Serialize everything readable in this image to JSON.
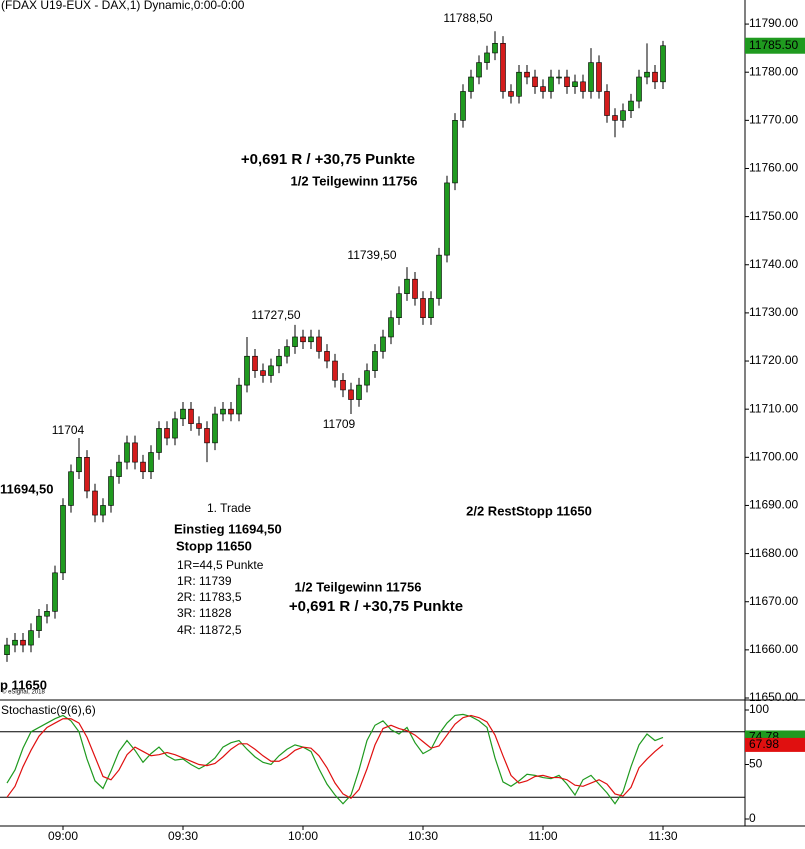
{
  "chart_data": [
    {
      "type": "candlestick",
      "title": "(FDAX U19-EUX - DAX,1) Dynamic,0:00-0:00",
      "categories": [
        null,
        null,
        null,
        null,
        null,
        null,
        null,
        "09:00",
        null,
        null,
        null,
        null,
        null,
        null,
        null,
        null,
        null,
        null,
        null,
        null,
        null,
        null,
        "09:30",
        null,
        null,
        null,
        null,
        null,
        null,
        null,
        null,
        null,
        null,
        null,
        null,
        null,
        null,
        "10:00",
        null,
        null,
        null,
        null,
        null,
        null,
        null,
        null,
        null,
        null,
        null,
        null,
        null,
        null,
        "10:30",
        null,
        null,
        null,
        null,
        null,
        null,
        null,
        null,
        null,
        null,
        null,
        null,
        null,
        null,
        "11:00",
        null,
        null,
        null,
        null,
        null,
        null,
        null,
        null,
        null,
        null,
        null,
        null,
        null,
        null,
        "11:30"
      ],
      "open": [
        11659,
        11661,
        11662,
        11661,
        11664,
        11667,
        11668,
        11676,
        11690,
        11697,
        11700,
        11693,
        11688,
        11690,
        11696,
        11699,
        11703,
        11699,
        11697,
        11701,
        11706,
        11704,
        11708,
        11710,
        11707,
        11706,
        11703,
        11709,
        11710,
        11709,
        11715,
        11721,
        11718,
        11717,
        11719,
        11721,
        11723,
        11725,
        11724,
        11725,
        11722,
        11720,
        11716,
        11714,
        11712,
        11715,
        11718,
        11722,
        11725,
        11729,
        11734,
        11737,
        11733,
        11729,
        11733,
        11742,
        11757,
        11770,
        11776,
        11779,
        11782,
        11784,
        11786,
        11776,
        11775,
        11780,
        11779,
        11777,
        11776,
        11779,
        11779,
        11777,
        11778,
        11776,
        11782,
        11776,
        11771,
        11770,
        11772,
        11774,
        11779,
        11780,
        11778
      ],
      "high": [
        11662.5,
        11663.5,
        11663.5,
        11665.5,
        11668.5,
        11669.5,
        11677.5,
        11691.5,
        11698.5,
        11704,
        11701.5,
        11694.5,
        11691.5,
        11697.5,
        11700.5,
        11704.5,
        11704.5,
        11700.5,
        11702.5,
        11707.5,
        11707.5,
        11709.5,
        11711.5,
        11711.5,
        11708.5,
        11707.5,
        11710.5,
        11711.5,
        11711.5,
        11716.5,
        11725,
        11722.5,
        11719.5,
        11720.5,
        11722.5,
        11724.5,
        11727.5,
        11726.5,
        11726.5,
        11726.5,
        11723.5,
        11721.5,
        11717.5,
        11715.5,
        11716.5,
        11719.5,
        11723.5,
        11726.5,
        11730.5,
        11735.5,
        11739.5,
        11738.5,
        11734.5,
        11734.5,
        11743.5,
        11758.5,
        11771.5,
        11777.5,
        11780.5,
        11783.5,
        11785.5,
        11788.5,
        11787.5,
        11777.5,
        11781.5,
        11781.5,
        11780.5,
        11778.5,
        11780.5,
        11780.5,
        11780.5,
        11779.5,
        11779.5,
        11785,
        11783.5,
        11777.5,
        11772.5,
        11773.5,
        11775.5,
        11780.5,
        11786,
        11781.5,
        11786.5
      ],
      "low": [
        11657.5,
        11659.5,
        11659.5,
        11659.5,
        11662.5,
        11665.5,
        11666.5,
        11674.5,
        11688.5,
        11695.5,
        11691.5,
        11686.5,
        11686.5,
        11688.5,
        11694.5,
        11697.5,
        11697.5,
        11695.5,
        11695.5,
        11699.5,
        11702.5,
        11702.5,
        11706.5,
        11705.5,
        11704.5,
        11699,
        11701.5,
        11707.5,
        11707.5,
        11707.5,
        11713.5,
        11716.5,
        11715.5,
        11715.5,
        11717.5,
        11719.5,
        11721.5,
        11722.5,
        11722.5,
        11720.5,
        11718.5,
        11714.5,
        11712.5,
        11709,
        11710.5,
        11713.5,
        11716.5,
        11720.5,
        11723.5,
        11727.5,
        11732.5,
        11731.5,
        11727.5,
        11727.5,
        11731.5,
        11740.5,
        11755.5,
        11768.5,
        11774.5,
        11777.5,
        11780.5,
        11782.5,
        11774.5,
        11773.5,
        11773.5,
        11777.5,
        11775.5,
        11774.5,
        11774.5,
        11777.5,
        11775.5,
        11775.5,
        11774.5,
        11774.5,
        11774.5,
        11769.5,
        11766.5,
        11768.5,
        11770.5,
        11772.5,
        11777.5,
        11776.5,
        11776.5
      ],
      "close": [
        11661,
        11662,
        11661,
        11664,
        11667,
        11668,
        11676,
        11690,
        11697,
        11700,
        11693,
        11688,
        11690,
        11696,
        11699,
        11703,
        11699,
        11697,
        11701,
        11706,
        11704,
        11708,
        11710,
        11707,
        11706,
        11703,
        11709,
        11710,
        11709,
        11715,
        11721,
        11718,
        11717,
        11719,
        11721,
        11723,
        11725,
        11724,
        11725,
        11722,
        11720,
        11716,
        11714,
        11712,
        11715,
        11718,
        11722,
        11725,
        11729,
        11734,
        11737,
        11733,
        11729,
        11733,
        11742,
        11757,
        11770,
        11776,
        11779,
        11782,
        11784,
        11786,
        11776,
        11775,
        11780,
        11779,
        11777,
        11776,
        11779,
        11779,
        11777,
        11778,
        11776,
        11782,
        11776,
        11771,
        11770,
        11772,
        11774,
        11779,
        11780,
        11778,
        11785.5
      ],
      "up_color": "#1f9a1f",
      "down_color": "#d41c1c",
      "ylim": [
        11650,
        11795
      ],
      "yticks": [
        {
          "value": 11650,
          "label": "11650.00"
        },
        {
          "value": 11660,
          "label": "11660.00"
        },
        {
          "value": 11670,
          "label": "11670.00"
        },
        {
          "value": 11680,
          "label": "11680.00"
        },
        {
          "value": 11690,
          "label": "11690.00"
        },
        {
          "value": 11700,
          "label": "11700.00"
        },
        {
          "value": 11710,
          "label": "11710.00"
        },
        {
          "value": 11720,
          "label": "11720.00"
        },
        {
          "value": 11730,
          "label": "11730.00"
        },
        {
          "value": 11740,
          "label": "11740.00"
        },
        {
          "value": 11750,
          "label": "11750.00"
        },
        {
          "value": 11760,
          "label": "11760.00"
        },
        {
          "value": 11770,
          "label": "11770.00"
        },
        {
          "value": 11780,
          "label": "11780.00"
        },
        {
          "value": 11790,
          "label": "11790.00"
        }
      ],
      "last_price": {
        "value": 11785.5,
        "label": "11785.50"
      }
    },
    {
      "type": "line",
      "title": "Stochastic(9(6),6)",
      "title_color": "#1f8a1f",
      "series": [
        {
          "color": "#1f9a1f",
          "values": [
            33,
            45,
            65,
            80,
            84,
            88,
            92,
            95,
            90,
            80,
            55,
            35,
            28,
            44,
            62,
            72,
            63,
            52,
            60,
            66,
            58,
            54,
            55,
            50,
            46,
            50,
            56,
            66,
            70,
            72,
            64,
            57,
            52,
            50,
            58,
            64,
            68,
            66,
            62,
            46,
            32,
            22,
            14,
            22,
            45,
            72,
            86,
            90,
            82,
            78,
            84,
            70,
            60,
            64,
            78,
            88,
            95,
            96,
            94,
            90,
            84,
            56,
            34,
            30,
            35,
            41,
            40,
            38,
            37,
            40,
            32,
            22,
            36,
            40,
            32,
            24,
            14,
            25,
            48,
            68,
            78,
            72,
            74.78
          ]
        },
        {
          "color": "#e01010",
          "values": [
            20,
            30,
            48,
            63,
            76,
            84,
            88,
            92,
            92,
            88,
            75,
            57,
            39,
            36,
            45,
            59,
            66,
            62,
            58,
            59,
            61,
            59,
            56,
            53,
            50,
            49,
            51,
            57,
            64,
            69,
            69,
            64,
            58,
            53,
            53,
            57,
            63,
            66,
            65,
            58,
            47,
            33,
            23,
            19,
            27,
            46,
            68,
            83,
            86,
            83,
            81,
            77,
            71,
            65,
            67,
            77,
            87,
            93,
            95,
            93,
            89,
            77,
            58,
            40,
            33,
            35,
            39,
            40,
            38,
            38,
            36,
            31,
            30,
            33,
            36,
            32,
            23,
            21,
            29,
            47,
            55,
            62,
            67.98
          ]
        }
      ],
      "ylim": [
        0,
        100
      ],
      "yticks": [
        0,
        50,
        100
      ],
      "levels": [
        20,
        80
      ]
    }
  ],
  "annotations": [
    {
      "text": "11788,50",
      "color": "#000"
    },
    {
      "text": "+0,691 R / +30,75 Punkte",
      "color": "#000"
    },
    {
      "text": "1/2 Teilgewinn 11756",
      "color": "#1f8a1f"
    },
    {
      "text": "11739,50",
      "color": "#000"
    },
    {
      "text": "11727,50",
      "color": "#000"
    },
    {
      "text": "11704",
      "color": "#000"
    },
    {
      "text": "11709",
      "color": "#000"
    },
    {
      "text": "11694,50",
      "color": "#1f8a1f"
    },
    {
      "text": "1. Trade",
      "color": "#000"
    },
    {
      "text": "2/2 RestStopp 11650",
      "color": "#1f8a1f"
    },
    {
      "text": "Einstieg 11694,50",
      "color": "#1f8a1f"
    },
    {
      "text": "Stopp 11650",
      "color": "#1f8a1f"
    },
    {
      "text": "1R=44,5 Punkte",
      "color": "#000"
    },
    {
      "text": "1R: 11739",
      "color": "#000"
    },
    {
      "text": "2R: 11783,5",
      "color": "#000"
    },
    {
      "text": "3R: 11828",
      "color": "#000"
    },
    {
      "text": "4R: 11872,5",
      "color": "#000"
    },
    {
      "text": "1/2 Teilgewinn 11756",
      "color": "#1f8a1f"
    },
    {
      "text": "+0,691 R / +30,75 Punkte",
      "color": "#000"
    },
    {
      "text": "p 11650",
      "color": "#1f8a1f"
    }
  ],
  "copyright": "© eSignal, 2018"
}
